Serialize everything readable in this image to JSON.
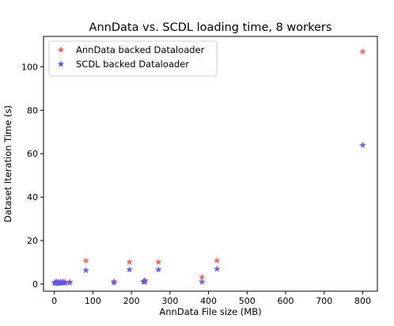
{
  "chart_data": {
    "type": "scatter",
    "title": "AnnData vs. SCDL loading time, 8 workers",
    "xlabel": "AnnData File size (MB)",
    "ylabel": "Dataset Iteration Time (s)",
    "xlim": [
      -28,
      838
    ],
    "ylim": [
      -3.3,
      114
    ],
    "xticks": [
      0,
      100,
      200,
      300,
      400,
      500,
      600,
      700,
      800
    ],
    "yticks": [
      0,
      20,
      40,
      60,
      80,
      100
    ],
    "grid": false,
    "legend_position": "top-left",
    "marker": "star",
    "series": [
      {
        "name": "AnnData backed Dataloader",
        "color": "#e06666",
        "points": [
          [
            1,
            0.6
          ],
          [
            3,
            0.9
          ],
          [
            6,
            1.0
          ],
          [
            9,
            0.8
          ],
          [
            12,
            0.7
          ],
          [
            16,
            1.0
          ],
          [
            20,
            0.9
          ],
          [
            24,
            1.1
          ],
          [
            28,
            0.8
          ],
          [
            40,
            1.0
          ],
          [
            82,
            10.7
          ],
          [
            155,
            1.2
          ],
          [
            195,
            10.1
          ],
          [
            232,
            1.3
          ],
          [
            235,
            1.7
          ],
          [
            270,
            10.1
          ],
          [
            383,
            3.2
          ],
          [
            422,
            10.8
          ],
          [
            800,
            107
          ]
        ]
      },
      {
        "name": "SCDL backed Dataloader",
        "color": "#5a5ae6",
        "points": [
          [
            1,
            0.4
          ],
          [
            3,
            0.5
          ],
          [
            6,
            0.5
          ],
          [
            9,
            0.4
          ],
          [
            12,
            0.4
          ],
          [
            16,
            0.5
          ],
          [
            20,
            0.5
          ],
          [
            24,
            0.6
          ],
          [
            28,
            0.5
          ],
          [
            40,
            0.6
          ],
          [
            82,
            6.3
          ],
          [
            155,
            0.6
          ],
          [
            195,
            6.6
          ],
          [
            232,
            0.9
          ],
          [
            235,
            1.1
          ],
          [
            270,
            6.6
          ],
          [
            383,
            1.0
          ],
          [
            422,
            6.9
          ],
          [
            800,
            64
          ]
        ]
      }
    ]
  }
}
